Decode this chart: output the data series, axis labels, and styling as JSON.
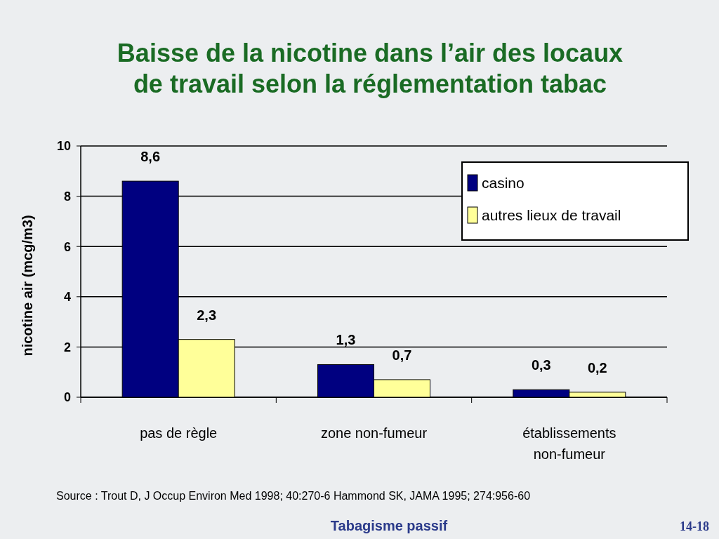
{
  "chart_data": {
    "type": "bar",
    "title": "Baisse de la nicotine dans l’air des locaux de travail selon la réglementation tabac",
    "ylabel": "nicotine air (mcg/m3)",
    "categories": [
      "pas de règle",
      "zone non-fumeur",
      "établissements non-fumeur"
    ],
    "series": [
      {
        "name": "casino",
        "color": "#000080",
        "values": [
          8.6,
          1.3,
          0.3
        ],
        "value_labels": [
          "8,6",
          "1,3",
          "0,3"
        ]
      },
      {
        "name": "autres lieux de travail",
        "color": "#ffff99",
        "values": [
          2.3,
          0.7,
          0.2
        ],
        "value_labels": [
          "2,3",
          "0,7",
          "0,2"
        ]
      }
    ],
    "ylim": [
      0,
      10
    ],
    "yticks": [
      0,
      2,
      4,
      6,
      8,
      10
    ],
    "grid": "y",
    "legend": "top right",
    "annotations": [
      "Source : Trout D, J Occup Environ Med 1998; 40:270-6  Hammond SK, JAMA 1995; 274:956-60",
      "Tabagisme passif",
      "14-18"
    ]
  }
}
